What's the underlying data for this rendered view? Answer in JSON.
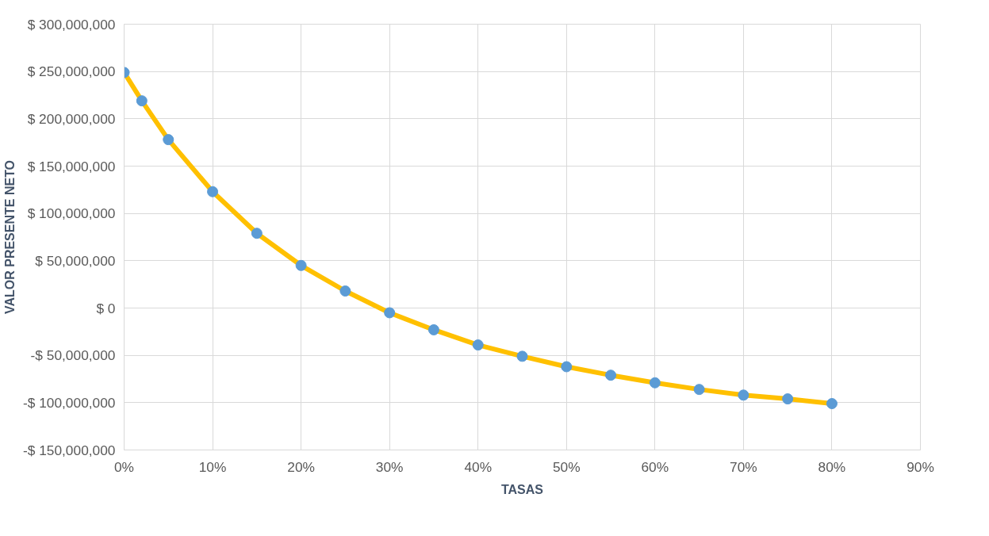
{
  "chart_data": {
    "type": "line",
    "xlabel": "TASAS",
    "ylabel": "VALOR PRESENTE NETO",
    "x": [
      0,
      2,
      5,
      10,
      15,
      20,
      25,
      30,
      35,
      40,
      45,
      50,
      55,
      60,
      65,
      70,
      75,
      80
    ],
    "series": [
      {
        "color": "#ffc000",
        "values": [
          249000000,
          219000000,
          178000000,
          123000000,
          79000000,
          45000000,
          18000000,
          -5000000,
          -23000000,
          -39000000,
          -51000000,
          -62000000,
          -71000000,
          -79000000,
          -86000000,
          -92000000,
          -96000000,
          -101000000
        ]
      }
    ],
    "marker": "circle",
    "xlim": [
      0,
      90
    ],
    "xticks": [
      {
        "value": 0,
        "label": "0%"
      },
      {
        "value": 10,
        "label": "10%"
      },
      {
        "value": 20,
        "label": "20%"
      },
      {
        "value": 30,
        "label": "30%"
      },
      {
        "value": 40,
        "label": "40%"
      },
      {
        "value": 50,
        "label": "50%"
      },
      {
        "value": 60,
        "label": "60%"
      },
      {
        "value": 70,
        "label": "70%"
      },
      {
        "value": 80,
        "label": "80%"
      },
      {
        "value": 90,
        "label": "90%"
      }
    ],
    "ylim": [
      -150000000,
      300000000
    ],
    "yticks": [
      {
        "value": -150000000,
        "label": "-$ 150,000,000"
      },
      {
        "value": -100000000,
        "label": "-$ 100,000,000"
      },
      {
        "value": -50000000,
        "label": "-$ 50,000,000"
      },
      {
        "value": 0,
        "label": "$ 0"
      },
      {
        "value": 50000000,
        "label": "$ 50,000,000"
      },
      {
        "value": 100000000,
        "label": "$ 100,000,000"
      },
      {
        "value": 150000000,
        "label": "$ 150,000,000"
      },
      {
        "value": 200000000,
        "label": "$ 200,000,000"
      },
      {
        "value": 250000000,
        "label": "$ 250,000,000"
      },
      {
        "value": 300000000,
        "label": "$ 300,000,000"
      }
    ],
    "grid": true
  }
}
